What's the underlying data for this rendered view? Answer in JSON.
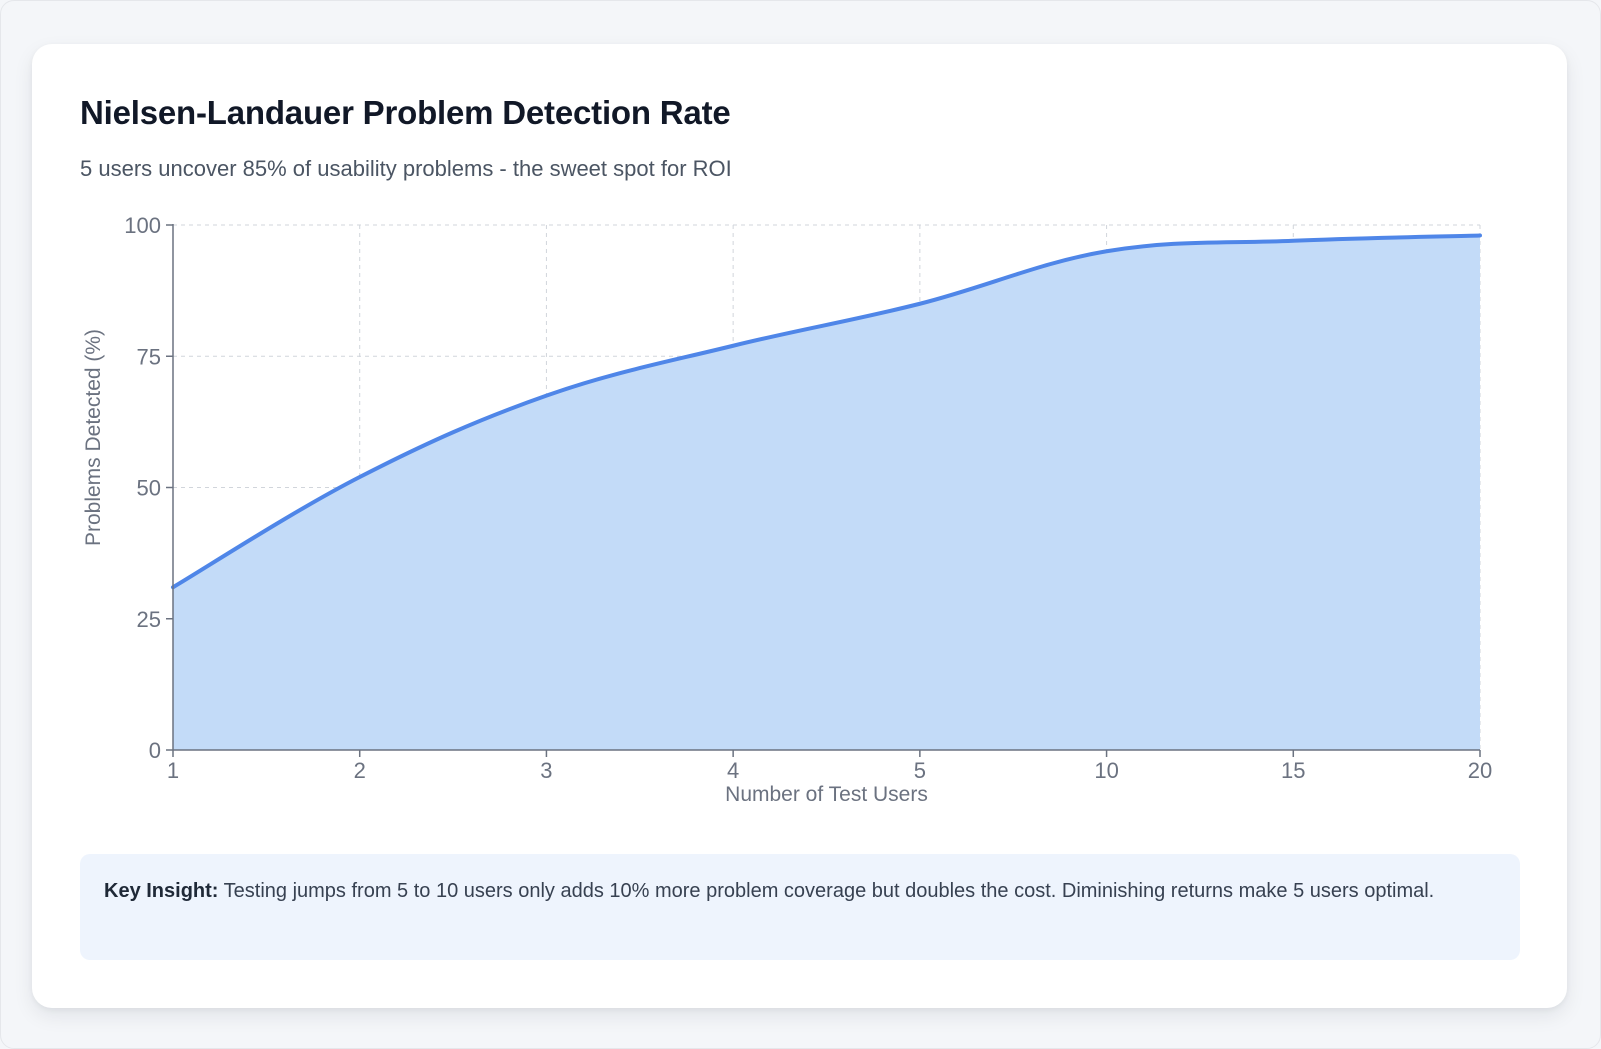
{
  "card": {
    "title": "Nielsen-Landauer Problem Detection Rate",
    "subtitle": "5 users uncover 85% of usability problems - the sweet spot for ROI"
  },
  "insight": {
    "label": "Key Insight:",
    "text": "Testing jumps from 5 to 10 users only adds 10% more problem coverage but doubles the cost. Diminishing returns make 5 users optimal."
  },
  "chart_data": {
    "type": "area",
    "title": "Nielsen-Landauer Problem Detection Rate",
    "xlabel": "Number of Test Users",
    "ylabel": "Problems Detected (%)",
    "x_scale": "categorical",
    "categories": [
      "1",
      "2",
      "3",
      "4",
      "5",
      "10",
      "15",
      "20"
    ],
    "values": [
      31,
      52,
      67.5,
      77,
      85,
      95,
      97,
      98
    ],
    "ylim": [
      0,
      100
    ],
    "yticks": [
      0,
      25,
      50,
      75,
      100
    ],
    "grid": true,
    "legend": "none",
    "colors": {
      "line": "#4f86e8",
      "fill": "#c3dbf8",
      "grid": "#d1d5db",
      "axis": "#6b7280",
      "tick_text": "#6b7280"
    }
  }
}
